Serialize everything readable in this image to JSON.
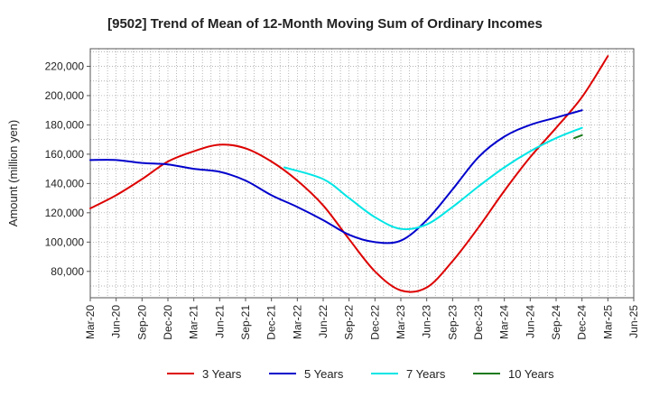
{
  "chart_data": {
    "type": "line",
    "title": "[9502]  Trend of Mean of 12-Month Moving Sum of Ordinary Incomes",
    "xlabel": "",
    "ylabel": "Amount (million yen)",
    "x_tick_labels": [
      "Mar-20",
      "Jun-20",
      "Sep-20",
      "Dec-20",
      "Mar-21",
      "Jun-21",
      "Sep-21",
      "Dec-21",
      "Mar-22",
      "Jun-22",
      "Sep-22",
      "Dec-22",
      "Mar-23",
      "Jun-23",
      "Sep-23",
      "Dec-23",
      "Mar-24",
      "Jun-24",
      "Sep-24",
      "Dec-24",
      "Mar-25",
      "Jun-25"
    ],
    "y_tick_labels": [
      "80,000",
      "100,000",
      "120,000",
      "140,000",
      "160,000",
      "180,000",
      "200,000",
      "220,000"
    ],
    "y_ticks": [
      80000,
      100000,
      120000,
      140000,
      160000,
      180000,
      200000,
      220000
    ],
    "ylim": [
      62000,
      232000
    ],
    "grid": true,
    "legend_position": "bottom",
    "series": [
      {
        "name": "3 Years",
        "color": "#dd0000",
        "points": [
          [
            0,
            123000
          ],
          [
            1,
            132000
          ],
          [
            2,
            143000
          ],
          [
            3,
            155000
          ],
          [
            4,
            162000
          ],
          [
            5,
            166500
          ],
          [
            6,
            164000
          ],
          [
            7,
            155000
          ],
          [
            8,
            142000
          ],
          [
            9,
            125000
          ],
          [
            10,
            102000
          ],
          [
            11,
            80000
          ],
          [
            12,
            67000
          ],
          [
            13,
            69000
          ],
          [
            14,
            87000
          ],
          [
            15,
            110000
          ],
          [
            16,
            135000
          ],
          [
            17,
            158000
          ],
          [
            18,
            178000
          ],
          [
            19,
            199000
          ],
          [
            20,
            227000
          ]
        ]
      },
      {
        "name": "5 Years",
        "color": "#0000cc",
        "points": [
          [
            0,
            156000
          ],
          [
            1,
            156000
          ],
          [
            2,
            154000
          ],
          [
            3,
            153000
          ],
          [
            4,
            150000
          ],
          [
            5,
            148000
          ],
          [
            6,
            142000
          ],
          [
            7,
            132000
          ],
          [
            8,
            124000
          ],
          [
            9,
            115000
          ],
          [
            10,
            105000
          ],
          [
            11,
            100000
          ],
          [
            12,
            101000
          ],
          [
            13,
            115000
          ],
          [
            14,
            136000
          ],
          [
            15,
            158000
          ],
          [
            16,
            172000
          ],
          [
            17,
            180000
          ],
          [
            18,
            185000
          ],
          [
            19,
            190000
          ]
        ]
      },
      {
        "name": "7 Years",
        "color": "#00e5e5",
        "points": [
          [
            7.5,
            151000
          ],
          [
            9,
            143000
          ],
          [
            10,
            130000
          ],
          [
            11,
            117000
          ],
          [
            12,
            109000
          ],
          [
            13,
            112000
          ],
          [
            14,
            124000
          ],
          [
            15,
            138000
          ],
          [
            16,
            151000
          ],
          [
            17,
            162000
          ],
          [
            18,
            171000
          ],
          [
            19,
            178000
          ]
        ]
      },
      {
        "name": "10 Years",
        "color": "#1a7a1a",
        "points": [
          [
            18.7,
            171000
          ],
          [
            19,
            173000
          ]
        ]
      }
    ]
  }
}
